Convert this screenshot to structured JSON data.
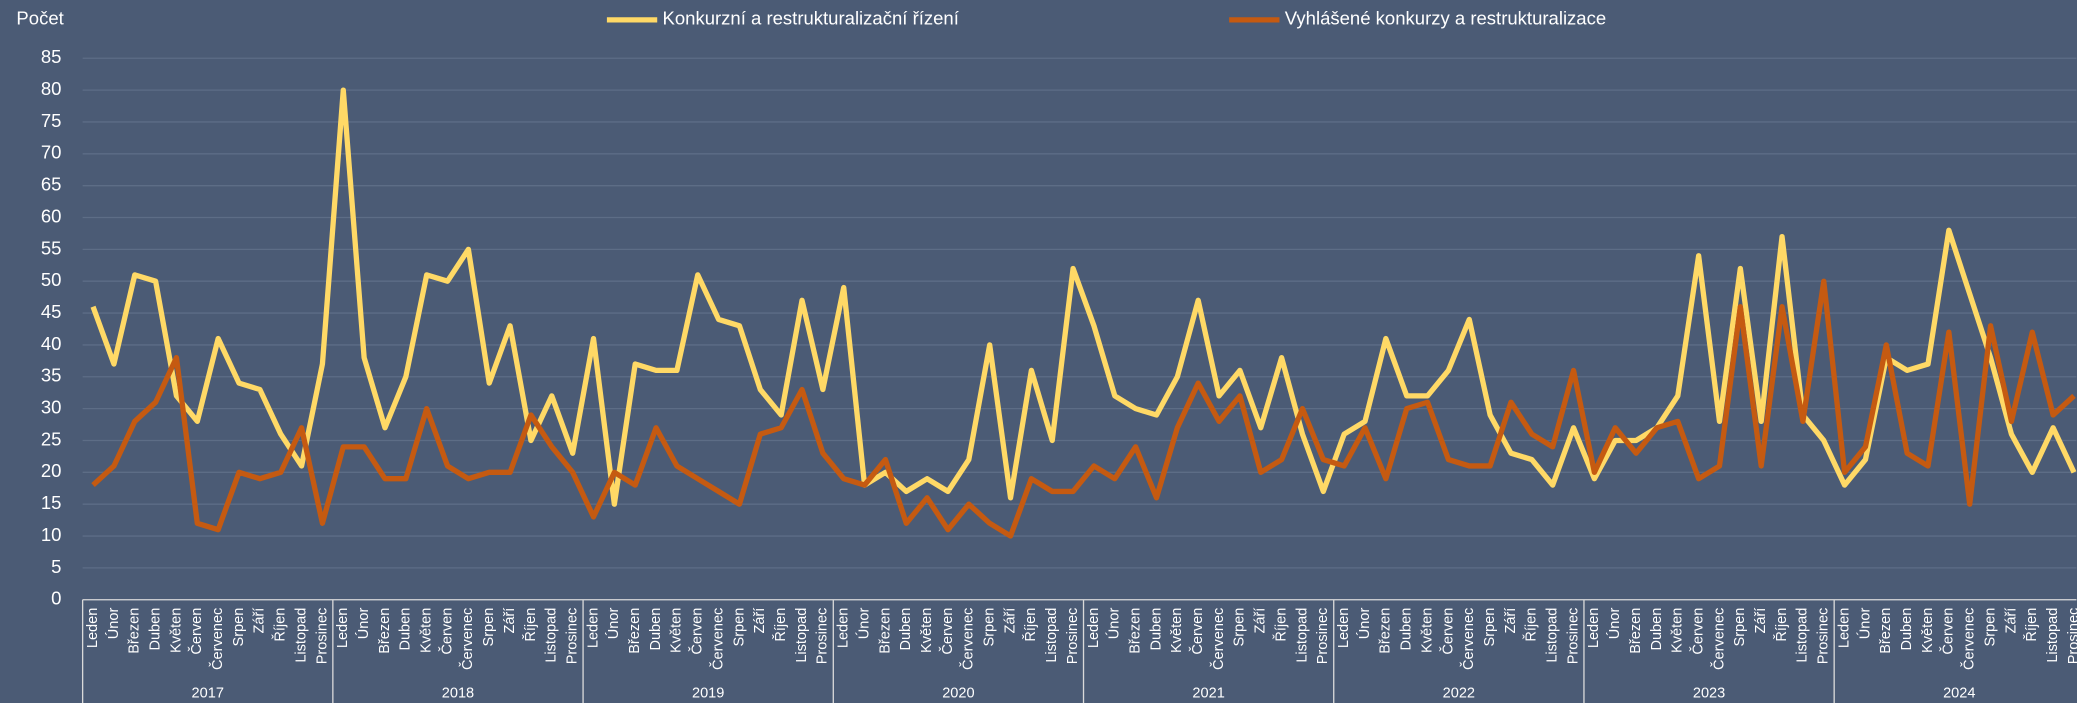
{
  "chart_data": {
    "type": "line",
    "y_label": "Počet",
    "categories": [
      "Leden",
      "Únor",
      "Březen",
      "Duben",
      "Květen",
      "Červen",
      "Červenec",
      "Srpen",
      "Září",
      "Říjen",
      "Listopad",
      "Prosinec",
      "Leden",
      "Únor",
      "Březen",
      "Duben",
      "Květen",
      "Červen",
      "Červenec",
      "Srpen",
      "Září",
      "Říjen",
      "Listopad",
      "Prosinec",
      "Leden",
      "Únor",
      "Březen",
      "Duben",
      "Květen",
      "Červen",
      "Červenec",
      "Srpen",
      "Září",
      "Říjen",
      "Listopad",
      "Prosinec",
      "Leden",
      "Únor",
      "Březen",
      "Duben",
      "Květen",
      "Červen",
      "Červenec",
      "Srpen",
      "Září",
      "Říjen",
      "Listopad",
      "Prosinec",
      "Leden",
      "Únor",
      "Březen",
      "Duben",
      "Květen",
      "Červen",
      "Červenec",
      "Srpen",
      "Září",
      "Říjen",
      "Listopad",
      "Prosinec",
      "Leden",
      "Únor",
      "Březen",
      "Duben",
      "Květen",
      "Červen",
      "Červenec",
      "Srpen",
      "Září",
      "Říjen",
      "Listopad",
      "Prosinec",
      "Leden",
      "Únor",
      "Březen",
      "Duben",
      "Květen",
      "Červen",
      "Červenec",
      "Srpen",
      "Září",
      "Říjen",
      "Listopad",
      "Prosinec",
      "Leden",
      "Únor",
      "Březen",
      "Duben",
      "Květen",
      "Červen",
      "Červenec",
      "Srpen",
      "Září",
      "Říjen",
      "Listopad",
      "Prosinec"
    ],
    "years": [
      "2017",
      "2018",
      "2019",
      "2020",
      "2021",
      "2022",
      "2023",
      "2024"
    ],
    "series": [
      {
        "name": "Konkurzní a restrukturalizační řízení",
        "color": "#ffd966",
        "values": [
          46,
          37,
          51,
          50,
          32,
          28,
          41,
          34,
          33,
          26,
          21,
          37,
          80,
          38,
          27,
          35,
          51,
          50,
          55,
          34,
          43,
          25,
          32,
          23,
          41,
          15,
          37,
          36,
          36,
          51,
          44,
          43,
          33,
          29,
          47,
          33,
          49,
          18,
          20,
          17,
          19,
          17,
          22,
          40,
          16,
          36,
          25,
          52,
          43,
          32,
          30,
          29,
          35,
          47,
          32,
          36,
          27,
          38,
          26,
          17,
          26,
          28,
          41,
          32,
          32,
          36,
          44,
          29,
          23,
          22,
          18,
          27,
          19,
          25,
          25,
          27,
          32,
          54,
          28,
          52,
          28,
          57,
          29,
          25,
          18,
          22,
          38,
          36,
          37,
          58,
          48,
          38,
          26,
          20,
          27,
          20
        ]
      },
      {
        "name": "Vyhlášené konkurzy a restrukturalizace",
        "color": "#c55a11",
        "values": [
          18,
          21,
          28,
          31,
          38,
          12,
          11,
          20,
          19,
          20,
          27,
          12,
          24,
          24,
          19,
          19,
          30,
          21,
          19,
          20,
          20,
          29,
          24,
          20,
          13,
          20,
          18,
          27,
          21,
          19,
          17,
          15,
          26,
          27,
          33,
          23,
          19,
          18,
          22,
          12,
          16,
          11,
          15,
          12,
          10,
          19,
          17,
          17,
          21,
          19,
          24,
          16,
          27,
          34,
          28,
          32,
          20,
          22,
          30,
          22,
          21,
          27,
          19,
          30,
          31,
          22,
          21,
          21,
          31,
          26,
          24,
          36,
          20,
          27,
          23,
          27,
          28,
          19,
          21,
          46,
          21,
          46,
          28,
          50,
          20,
          24,
          40,
          23,
          21,
          42,
          15,
          43,
          28,
          42,
          29,
          32
        ]
      }
    ],
    "ylim": [
      0,
      85
    ],
    "yticks": [
      0,
      5,
      10,
      15,
      20,
      25,
      30,
      35,
      40,
      45,
      50,
      55,
      60,
      65,
      70,
      75,
      80,
      85
    ],
    "grid": true
  }
}
